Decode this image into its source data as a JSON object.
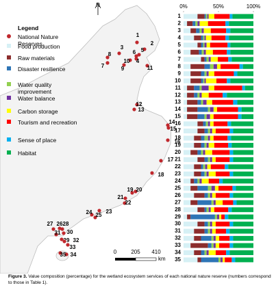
{
  "chart_data": {
    "type": "stacked-bar",
    "categories": [
      "1",
      "2",
      "3",
      "4",
      "5",
      "6",
      "7",
      "8",
      "9",
      "10",
      "11",
      "12",
      "13",
      "14",
      "15",
      "16",
      "17",
      "18",
      "19",
      "20",
      "21",
      "22",
      "23",
      "24",
      "25",
      "26",
      "27",
      "28",
      "29",
      "30",
      "31",
      "32",
      "33",
      "34",
      "35"
    ],
    "xlim": [
      0,
      100
    ],
    "xticks": [
      {
        "value": 0,
        "label": "0%"
      },
      {
        "value": 50,
        "label": "50%"
      },
      {
        "value": 100,
        "label": "100%"
      }
    ],
    "series": [
      {
        "name": "Food production",
        "color": "#d6f0f5",
        "values": [
          20,
          5,
          10,
          15,
          20,
          10,
          25,
          10,
          10,
          10,
          5,
          5,
          5,
          5,
          5,
          20,
          20,
          15,
          15,
          10,
          20,
          15,
          15,
          10,
          10,
          15,
          10,
          20,
          5,
          20,
          15,
          15,
          10,
          15,
          20
        ]
      },
      {
        "name": "Raw materials",
        "color": "#8c2d2d",
        "values": [
          10,
          8,
          8,
          10,
          5,
          12,
          5,
          20,
          15,
          15,
          10,
          10,
          15,
          15,
          15,
          8,
          10,
          10,
          10,
          10,
          10,
          10,
          10,
          5,
          10,
          15,
          10,
          10,
          5,
          10,
          15,
          10,
          25,
          10,
          5
        ]
      },
      {
        "name": "Disaster resilience",
        "color": "#2e75b6",
        "values": [
          2,
          4,
          5,
          3,
          3,
          4,
          3,
          8,
          5,
          3,
          8,
          5,
          5,
          15,
          10,
          4,
          5,
          5,
          5,
          5,
          5,
          3,
          5,
          5,
          15,
          5,
          20,
          3,
          35,
          5,
          5,
          15,
          5,
          5,
          25
        ]
      },
      {
        "name": "Water quality improvement",
        "color": "#92d050",
        "values": [
          2,
          3,
          3,
          2,
          2,
          3,
          3,
          5,
          3,
          2,
          3,
          3,
          3,
          3,
          3,
          3,
          3,
          5,
          3,
          3,
          3,
          3,
          3,
          3,
          5,
          3,
          3,
          3,
          3,
          3,
          3,
          3,
          3,
          3,
          3
        ]
      },
      {
        "name": "Water balance",
        "color": "#7030a0",
        "values": [
          2,
          3,
          3,
          2,
          3,
          3,
          3,
          5,
          3,
          2,
          10,
          3,
          5,
          5,
          5,
          3,
          3,
          3,
          3,
          3,
          3,
          3,
          3,
          3,
          5,
          3,
          3,
          3,
          3,
          3,
          3,
          3,
          3,
          3,
          3
        ]
      },
      {
        "name": "Carbon storage",
        "color": "#ffff00",
        "values": [
          8,
          12,
          10,
          8,
          5,
          10,
          10,
          5,
          8,
          15,
          8,
          10,
          8,
          5,
          5,
          5,
          5,
          5,
          8,
          10,
          5,
          5,
          10,
          10,
          5,
          5,
          10,
          5,
          3,
          5,
          5,
          5,
          5,
          10,
          3
        ]
      },
      {
        "name": "Tourism and recreation",
        "color": "#ff0000",
        "values": [
          22,
          25,
          22,
          20,
          25,
          20,
          15,
          27,
          28,
          15,
          40,
          20,
          30,
          30,
          35,
          20,
          20,
          20,
          20,
          25,
          20,
          20,
          20,
          15,
          20,
          20,
          15,
          20,
          5,
          20,
          15,
          15,
          15,
          15,
          10
        ]
      },
      {
        "name": "Sense of place",
        "color": "#00b0f0",
        "values": [
          4,
          5,
          6,
          5,
          4,
          5,
          5,
          5,
          5,
          5,
          4,
          6,
          6,
          5,
          5,
          5,
          5,
          5,
          5,
          5,
          5,
          5,
          5,
          5,
          5,
          5,
          5,
          5,
          5,
          5,
          5,
          5,
          5,
          5,
          5
        ]
      },
      {
        "name": "Habitat",
        "color": "#00b050",
        "values": [
          30,
          35,
          33,
          35,
          33,
          33,
          31,
          15,
          23,
          33,
          12,
          38,
          23,
          17,
          17,
          32,
          29,
          32,
          31,
          29,
          29,
          36,
          29,
          44,
          25,
          29,
          24,
          31,
          36,
          29,
          34,
          29,
          29,
          34,
          26
        ]
      }
    ]
  },
  "map": {
    "legend_title": "Legend",
    "reserves_label": "National Nature Reserves",
    "north": "N",
    "scale_labels": [
      0,
      205,
      410
    ],
    "scale_unit": "km"
  },
  "caption": {
    "label": "Figure 3.",
    "text": "Value composition (percentage) for the wetland ecosystem services of each national nature reserve (numbers correspond to those in Table 1)."
  }
}
